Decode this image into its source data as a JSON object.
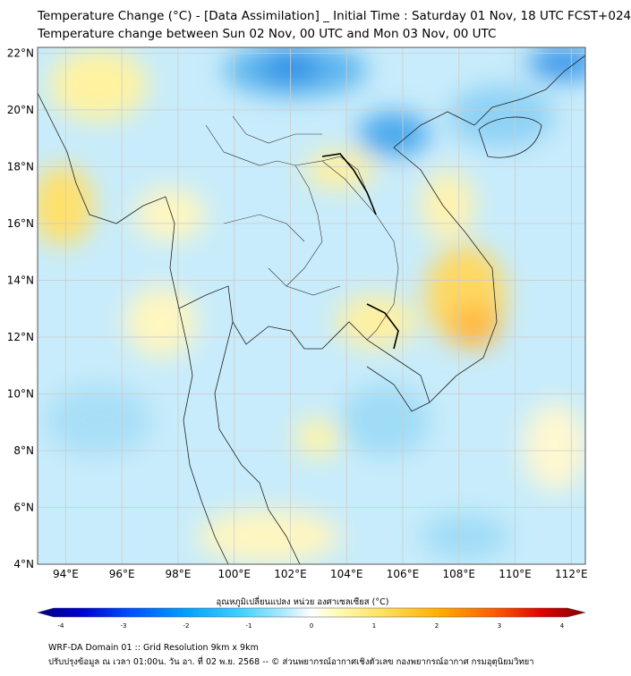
{
  "header": {
    "title_line1": "Temperature Change (°C) - [Data Assimilation] _ Initial Time : Saturday 01 Nov, 18 UTC FCST+024",
    "title_line2": "Temperature change between Sun 02 Nov, 00 UTC and Mon 03 Nov, 00 UTC"
  },
  "map": {
    "lat_labels": [
      "22°N",
      "20°N",
      "18°N",
      "16°N",
      "14°N",
      "12°N",
      "10°N",
      "8°N",
      "6°N",
      "4°N"
    ],
    "lon_labels": [
      "94°E",
      "96°E",
      "98°E",
      "100°E",
      "102°E",
      "104°E",
      "106°E",
      "108°E",
      "110°E",
      "112°E"
    ],
    "lat_values": [
      22,
      20,
      18,
      16,
      14,
      12,
      10,
      8,
      6,
      4
    ],
    "lon_values": [
      94,
      96,
      98,
      100,
      102,
      104,
      106,
      108,
      110,
      112
    ],
    "extent": {
      "lon_min": 93,
      "lon_max": 112.5,
      "lat_min": 4,
      "lat_max": 22.2
    }
  },
  "colorbar": {
    "label": "อุณหภูมิเปลี่ยนแปลง หน่วย องศาเซลเซียส (°C)",
    "ticks": [
      "-4",
      "-3",
      "-2",
      "-1",
      "0",
      "1",
      "2",
      "3",
      "4"
    ],
    "tick_values": [
      -4,
      -3,
      -2,
      -1,
      0,
      1,
      2,
      3,
      4
    ],
    "colors": [
      "#000080",
      "#0000d0",
      "#0050ff",
      "#00a0ff",
      "#40d0ff",
      "#b0eaff",
      "#ffffff",
      "#fffab0",
      "#ffe060",
      "#ffb000",
      "#ff6000",
      "#e00000",
      "#800000"
    ]
  },
  "footer": {
    "line1": "WRF-DA Domain 01 :: Grid Resolution 9km x 9km",
    "line2": "ปรับปรุงข้อมูล ณ เวลา 01:00น. วัน อา. ที่ 02 พ.ย. 2568 -- © ส่วนพยากรณ์อากาศเชิงตัวเลข กองพยากรณ์อากาศ กรมอุตุนิยมวิทยา"
  }
}
